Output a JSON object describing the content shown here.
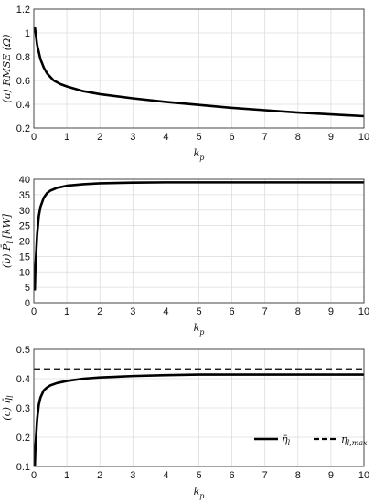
{
  "chart_data": [
    {
      "type": "line",
      "panel": "(a)",
      "ylabel": "(a) RMSE (Ω)",
      "xlabel": "k_p",
      "xlim": [
        0,
        10
      ],
      "ylim": [
        0.2,
        1.2
      ],
      "xticks": [
        0,
        1,
        2,
        3,
        4,
        5,
        6,
        7,
        8,
        9,
        10
      ],
      "yticks": [
        0.2,
        0.4,
        0.6,
        0.8,
        1,
        1.2
      ],
      "grid": true,
      "series": [
        {
          "style": "solid",
          "x": [
            0.03,
            0.1,
            0.2,
            0.3,
            0.4,
            0.5,
            0.6,
            0.8,
            1,
            1.5,
            2,
            3,
            4,
            5,
            6,
            7,
            8,
            9,
            10
          ],
          "y": [
            1.05,
            0.9,
            0.78,
            0.71,
            0.66,
            0.63,
            0.6,
            0.57,
            0.55,
            0.51,
            0.485,
            0.45,
            0.42,
            0.395,
            0.37,
            0.35,
            0.33,
            0.315,
            0.3
          ]
        }
      ]
    },
    {
      "type": "line",
      "panel": "(b)",
      "ylabel": "(b) P̄_l [kW]",
      "xlabel": "k_p",
      "xlim": [
        0,
        10
      ],
      "ylim": [
        0,
        40
      ],
      "xticks": [
        0,
        1,
        2,
        3,
        4,
        5,
        6,
        7,
        8,
        9,
        10
      ],
      "yticks": [
        0,
        5,
        10,
        15,
        20,
        25,
        30,
        35,
        40
      ],
      "grid": true,
      "series": [
        {
          "style": "solid",
          "x": [
            0.03,
            0.05,
            0.1,
            0.15,
            0.2,
            0.3,
            0.4,
            0.5,
            0.7,
            1,
            1.5,
            2,
            3,
            4,
            5,
            6,
            7,
            8,
            9,
            10
          ],
          "y": [
            4,
            12,
            22,
            28,
            31,
            34,
            35.5,
            36.3,
            37.2,
            37.9,
            38.4,
            38.7,
            38.9,
            39,
            39,
            39,
            39,
            39,
            39,
            39
          ]
        }
      ]
    },
    {
      "type": "line",
      "panel": "(c)",
      "ylabel": "(c) η̄_l",
      "xlabel": "k_p",
      "xlim": [
        0,
        10
      ],
      "ylim": [
        0.1,
        0.5
      ],
      "xticks": [
        0,
        1,
        2,
        3,
        4,
        5,
        6,
        7,
        8,
        9,
        10
      ],
      "yticks": [
        0.1,
        0.2,
        0.3,
        0.4,
        0.5
      ],
      "grid": true,
      "legend_position": "bottom-right",
      "series": [
        {
          "name": "η̄_l",
          "style": "solid",
          "x": [
            0.03,
            0.05,
            0.1,
            0.15,
            0.2,
            0.3,
            0.4,
            0.5,
            0.7,
            1,
            1.5,
            2,
            3,
            4,
            5,
            6,
            7,
            8,
            9,
            10
          ],
          "y": [
            0.1,
            0.17,
            0.26,
            0.31,
            0.335,
            0.36,
            0.37,
            0.377,
            0.385,
            0.392,
            0.4,
            0.404,
            0.409,
            0.412,
            0.414,
            0.414,
            0.414,
            0.414,
            0.414,
            0.414
          ]
        },
        {
          "name": "η_l,max",
          "style": "dashed",
          "x": [
            0,
            10
          ],
          "y": [
            0.432,
            0.432
          ]
        }
      ]
    }
  ]
}
